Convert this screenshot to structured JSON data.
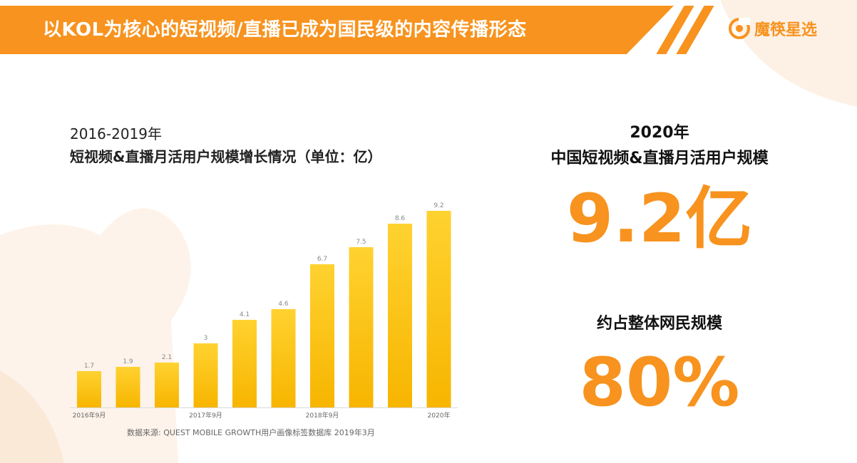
{
  "header": {
    "title": "以KOL为核心的短视频/直播已成为国民级的内容传播形态"
  },
  "brand": {
    "name": "魔筷星选",
    "color": "#f7931e"
  },
  "chart_titles": {
    "line1": "2016-2019年",
    "line2": "短视频&直播月活用户规模增长情况（单位：亿）"
  },
  "source": "数据来源: QUEST MOBILE GROWTH用户画像标签数据库 2019年3月",
  "stats": {
    "year": "2020年",
    "description": "中国短视频&直播月活用户规模",
    "users": "9.2亿",
    "share_label": "约占整体网民规模",
    "share": "80%"
  },
  "colors": {
    "accent": "#f7931e",
    "bar_top": "#ffd230",
    "bar_bottom": "#f7b500"
  },
  "chart_data": {
    "type": "bar",
    "categories": [
      "2016年9月",
      "",
      "",
      "2017年9月",
      "",
      "",
      "2018年9月",
      "",
      "",
      "2020年"
    ],
    "values": [
      1.7,
      1.9,
      2.1,
      3,
      4.1,
      4.6,
      6.7,
      7.5,
      8.6,
      9.2
    ],
    "value_labels": [
      "1.7",
      "1.9",
      "2.1",
      "3",
      "4.1",
      "4.6",
      "6.7",
      "7.5",
      "8.6",
      "9.2"
    ],
    "title": "短视频&直播月活用户规模增长情况（单位：亿）",
    "ylim": [
      0,
      10
    ],
    "grid": false,
    "legend": "none"
  }
}
